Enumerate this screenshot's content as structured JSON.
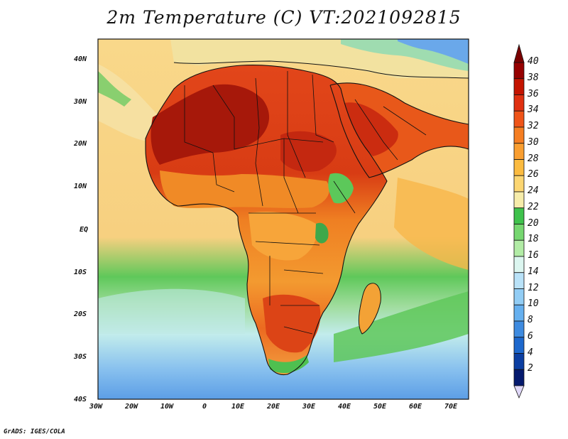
{
  "title": "2m Temperature (C) VT:2021092815",
  "credit": "GrADS: IGES/COLA",
  "lat_labels": [
    "40N",
    "30N",
    "20N",
    "10N",
    "EQ",
    "10S",
    "20S",
    "30S",
    "40S"
  ],
  "lon_labels": [
    "30W",
    "20W",
    "10W",
    "0",
    "10E",
    "20E",
    "30E",
    "40E",
    "50E",
    "60E",
    "70E"
  ],
  "colorbar": {
    "levels": [
      "40",
      "38",
      "36",
      "34",
      "32",
      "30",
      "28",
      "26",
      "24",
      "22",
      "20",
      "18",
      "16",
      "14",
      "12",
      "10",
      "8",
      "6",
      "4",
      "2"
    ],
    "colors": [
      "#960000",
      "#c41400",
      "#e03010",
      "#ef5418",
      "#f57e22",
      "#f99e30",
      "#fbbb40",
      "#fcd672",
      "#f6ecaa",
      "#3fc24c",
      "#76d770",
      "#b2eca6",
      "#dcf6f0",
      "#b9e2f8",
      "#92cdf5",
      "#66b0ef",
      "#3e8be0",
      "#1d68cd",
      "#0b3ea2",
      "#051a6e"
    ],
    "over_color": "#7a0000",
    "under_color": "#e0d8f8"
  },
  "map": {
    "region": "Africa",
    "ocean_colors": {
      "north_atlantic": "#f9d88a",
      "equatorial": "#f7d080",
      "south_mid": "#60c85a",
      "south_cool": "#bfe8e8",
      "south_cold": "#7fb8ec"
    },
    "land_colors": {
      "sahara_core": "#a8180a",
      "sahara": "#d9421a",
      "sahel": "#ee7a22",
      "central": "#f39a2e",
      "highlands": "#f9c44e",
      "green_edges": "#5ac856"
    }
  }
}
